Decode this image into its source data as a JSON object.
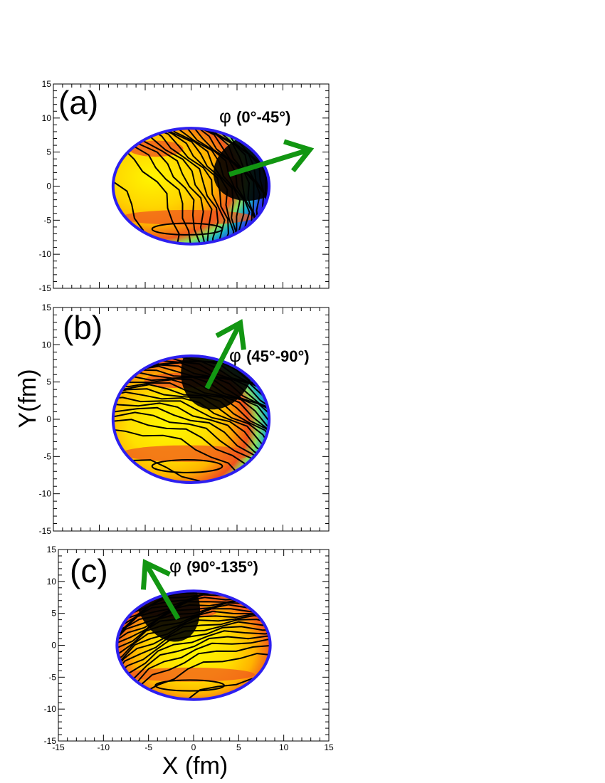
{
  "chart_data": {
    "type": "heatmap",
    "description_free": true,
    "xlabel": "X (fm)",
    "ylabel": "Y(fm)",
    "xlim": [
      -15,
      15
    ],
    "ylim": [
      -15,
      15
    ],
    "x_ticks": [
      -15,
      -10,
      -5,
      0,
      5,
      10,
      15
    ],
    "y_ticks": [
      -15,
      -10,
      -5,
      0,
      5,
      10,
      15
    ],
    "colors": {
      "arrow": "#129612",
      "contour": "#000000",
      "frame": "#000000"
    },
    "panels": [
      {
        "tag": "(a)",
        "phi_symbol": "φ",
        "phi_range": "(0°-45°)",
        "arrow_angle_deg": 22.5,
        "dense_side": "right",
        "hot_band": "lower-left",
        "show_x_tick_labels": false
      },
      {
        "tag": "(b)",
        "phi_symbol": "φ",
        "phi_range": "(45°-90°)",
        "arrow_angle_deg": 67.5,
        "dense_side": "top-right",
        "hot_band": "lower",
        "show_x_tick_labels": false
      },
      {
        "tag": "(c)",
        "phi_symbol": "φ",
        "phi_range": "(90°-135°)",
        "arrow_angle_deg": 112.5,
        "dense_side": "top-left",
        "hot_band": "lower",
        "show_x_tick_labels": true
      }
    ]
  }
}
